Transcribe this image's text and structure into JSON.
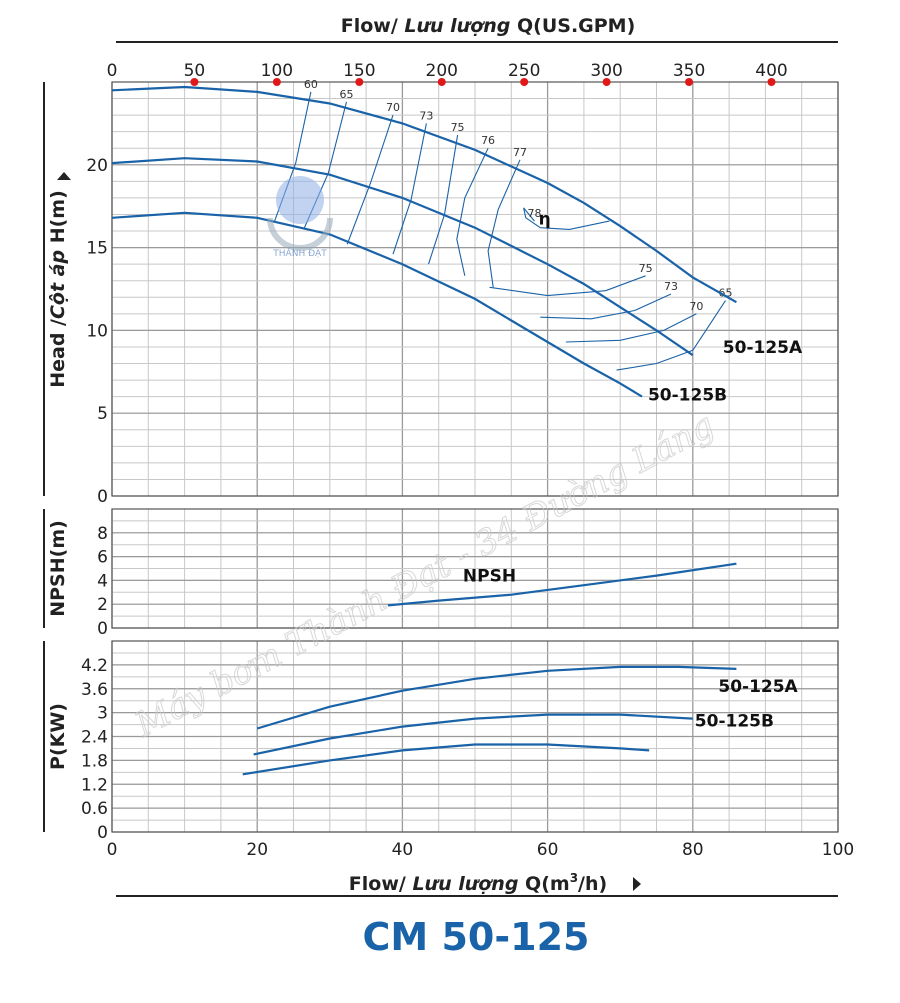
{
  "header": {
    "top_axis_title_prefix": "Flow/ ",
    "top_axis_title_italic": "Lưu lượng",
    "top_axis_title_suffix": " Q(US.GPM)"
  },
  "footer": {
    "bottom_axis_title_prefix": "Flow/ ",
    "bottom_axis_title_italic": "Lưu lượng",
    "bottom_axis_title_q": " Q(m",
    "bottom_axis_title_sup": "3",
    "bottom_axis_title_end": "/h)",
    "model_title": "CM 50-125"
  },
  "watermark": {
    "text": "Máy bơm Thành Đạt - 34 Đường Láng",
    "logo_text": "THÀNH ĐẠT"
  },
  "colors": {
    "curve": "#1a63a8",
    "grid": "#c8c8c8",
    "marker": "#e01818",
    "title": "#1a63a8"
  },
  "chart_data": [
    {
      "type": "line",
      "panel": "head",
      "ylabel_prefix": "Head /",
      "ylabel_italic": "Cột áp",
      "ylabel_suffix": " H(m)",
      "xlim": [
        0,
        100
      ],
      "ylim": [
        0,
        25
      ],
      "yticks": [
        0,
        5,
        10,
        15,
        20
      ],
      "top_axis": {
        "ticks": [
          0,
          50,
          100,
          150,
          200,
          250,
          300,
          350,
          400
        ],
        "marked_ticks": [
          50,
          100,
          150,
          200,
          250,
          300,
          350,
          400
        ]
      },
      "series": [
        {
          "name": "",
          "x": [
            0,
            10,
            20,
            30,
            40,
            50,
            60,
            65,
            70,
            75,
            80,
            86
          ],
          "y": [
            24.5,
            24.7,
            24.4,
            23.7,
            22.5,
            20.9,
            18.9,
            17.7,
            16.3,
            14.8,
            13.2,
            11.7
          ]
        },
        {
          "name": "50-125A",
          "label_pos": "end",
          "x": [
            0,
            10,
            20,
            30,
            40,
            50,
            60,
            65,
            70,
            75,
            80
          ],
          "y": [
            20.1,
            20.4,
            20.2,
            19.4,
            18.0,
            16.2,
            14.0,
            12.8,
            11.4,
            10.0,
            8.5
          ]
        },
        {
          "name": "50-125B",
          "label_pos": "end",
          "x": [
            0,
            10,
            20,
            30,
            40,
            50,
            55,
            60,
            65,
            70,
            73
          ],
          "y": [
            16.8,
            17.1,
            16.8,
            15.8,
            14.0,
            11.9,
            10.6,
            9.3,
            8.0,
            6.8,
            6.0
          ]
        }
      ],
      "efficiency_contours": [
        {
          "label": "60",
          "x": [
            22.4,
            25.3,
            27.4
          ],
          "y": [
            16.6,
            20.1,
            24.4
          ]
        },
        {
          "label": "65",
          "x": [
            26.4,
            29.8,
            32.3
          ],
          "y": [
            16.1,
            19.5,
            23.8
          ]
        },
        {
          "label": "70",
          "x": [
            32.4,
            35.6,
            38.7
          ],
          "y": [
            15.2,
            18.9,
            23.0
          ]
        },
        {
          "label": "73",
          "x": [
            38.7,
            41.2,
            43.3
          ],
          "y": [
            14.6,
            17.9,
            22.5
          ]
        },
        {
          "label": "75",
          "x": [
            43.6,
            45.8,
            47.6
          ],
          "y": [
            14.0,
            17.0,
            21.8
          ]
        },
        {
          "label": "76",
          "x": [
            48.6,
            47.5,
            48.6,
            51.8
          ],
          "y": [
            13.3,
            15.5,
            18.0,
            21.0
          ]
        },
        {
          "label": "77",
          "x": [
            52.5,
            51.8,
            53.2,
            56.2
          ],
          "y": [
            12.6,
            14.8,
            17.3,
            20.3
          ]
        },
        {
          "label": "78",
          "x": [
            58.2,
            56.7,
            57.0,
            59.0,
            63.0,
            68.5
          ],
          "y": [
            16.6,
            17.4,
            16.8,
            16.2,
            16.1,
            16.6
          ]
        },
        {
          "label": "75",
          "x": [
            52.0,
            60.0,
            68.0,
            73.5
          ],
          "y": [
            12.6,
            12.1,
            12.4,
            13.3
          ]
        },
        {
          "label": "73",
          "x": [
            59.0,
            66.0,
            72.0,
            77.0
          ],
          "y": [
            10.8,
            10.7,
            11.2,
            12.2
          ]
        },
        {
          "label": "70",
          "x": [
            62.5,
            70.0,
            76.0,
            80.5
          ],
          "y": [
            9.3,
            9.4,
            10.0,
            11.0
          ]
        },
        {
          "label": "65",
          "x": [
            69.5,
            75.0,
            80.0,
            84.5
          ],
          "y": [
            7.6,
            8.0,
            8.8,
            11.8
          ]
        }
      ],
      "annotations": [
        {
          "text": "η",
          "x": 59.6,
          "y": 16.4
        }
      ]
    },
    {
      "type": "line",
      "panel": "npsh",
      "ylabel": "NPSH(m)",
      "xlim": [
        0,
        100
      ],
      "ylim": [
        0,
        10
      ],
      "yticks": [
        0,
        2,
        4,
        6,
        8
      ],
      "series": [
        {
          "name": "NPSH",
          "x": [
            38,
            45,
            55,
            65,
            75,
            86
          ],
          "y": [
            1.9,
            2.3,
            2.8,
            3.6,
            4.4,
            5.4
          ]
        }
      ]
    },
    {
      "type": "line",
      "panel": "power",
      "ylabel": "P(KW)",
      "xlabel_ticks": [
        0,
        20,
        40,
        60,
        80,
        100
      ],
      "xlim": [
        0,
        100
      ],
      "ylim": [
        0,
        4.8
      ],
      "yticks": [
        0,
        0.6,
        1.2,
        1.8,
        2.4,
        3,
        3.6,
        4.2
      ],
      "series": [
        {
          "name": "50-125A",
          "label_pos": "end",
          "x": [
            20,
            30,
            40,
            50,
            60,
            70,
            78,
            86
          ],
          "y": [
            2.6,
            3.15,
            3.55,
            3.85,
            4.05,
            4.15,
            4.15,
            4.1
          ]
        },
        {
          "name": "50-125B",
          "label_pos": "end",
          "x": [
            19.5,
            30,
            40,
            50,
            60,
            70,
            80
          ],
          "y": [
            1.95,
            2.35,
            2.65,
            2.85,
            2.95,
            2.95,
            2.85
          ]
        },
        {
          "name": "",
          "x": [
            18,
            30,
            40,
            50,
            60,
            70,
            74
          ],
          "y": [
            1.45,
            1.8,
            2.05,
            2.2,
            2.2,
            2.1,
            2.05
          ]
        }
      ]
    }
  ]
}
